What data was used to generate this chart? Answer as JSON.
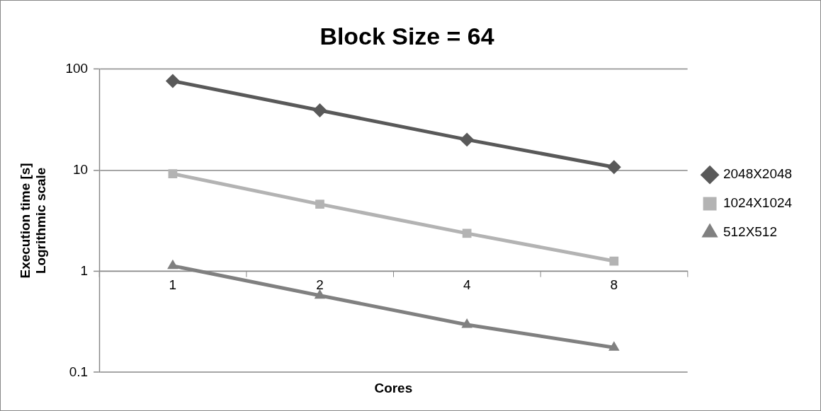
{
  "chart_data": {
    "type": "line",
    "title": "Block Size = 64",
    "xlabel": "Cores",
    "ylabel": "Execution time [s]\nLogrithmic scale",
    "categories": [
      "1",
      "2",
      "4",
      "8"
    ],
    "series": [
      {
        "name": "2048X2048",
        "color": "#595959",
        "marker": "diamond",
        "values": [
          76,
          39,
          20,
          10.7
        ]
      },
      {
        "name": "1024X1024",
        "color": "#b3b3b3",
        "marker": "square",
        "values": [
          9.2,
          4.6,
          2.37,
          1.26
        ]
      },
      {
        "name": "512X512",
        "color": "#808080",
        "marker": "triangle",
        "values": [
          1.13,
          0.575,
          0.296,
          0.176
        ]
      }
    ],
    "log": "y",
    "ylim": [
      0.1,
      100
    ],
    "yticks": [
      0.1,
      1,
      10,
      100
    ],
    "grid": "y",
    "legend": "right"
  }
}
